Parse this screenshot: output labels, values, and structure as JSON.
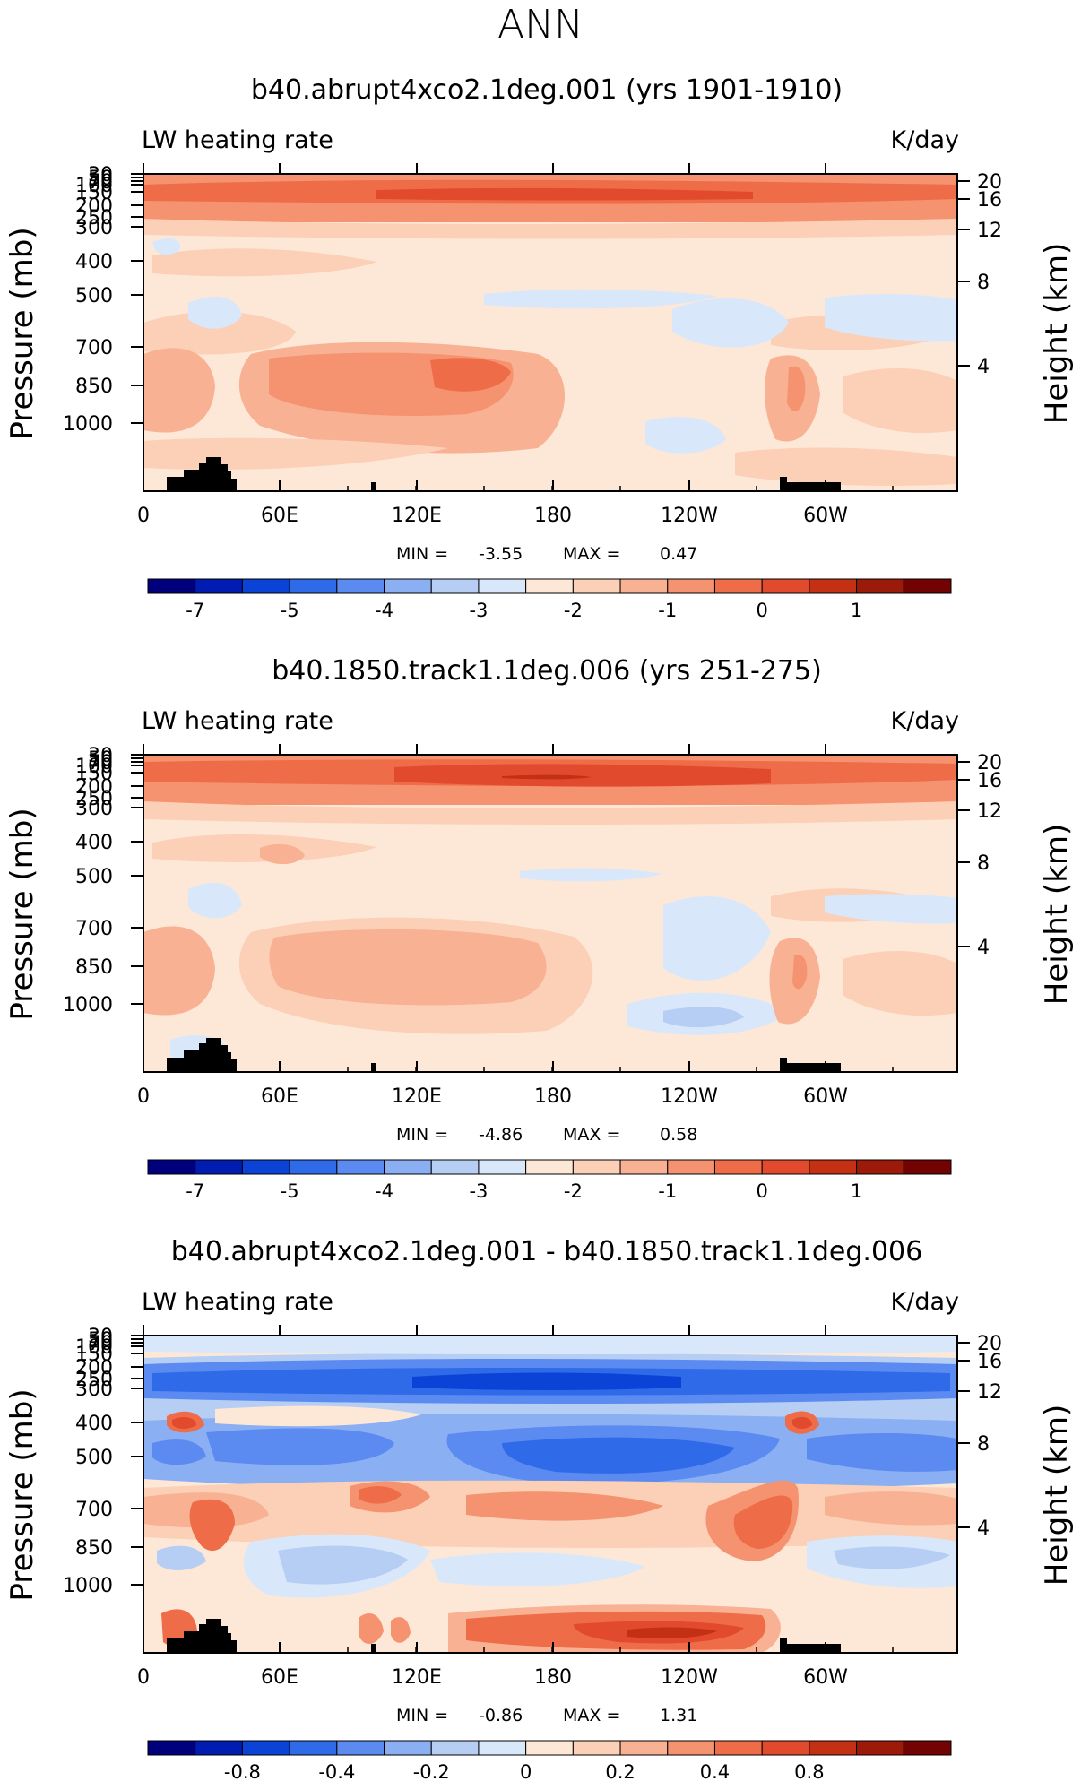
{
  "figure_title": "ANN",
  "colors": {
    "land": "#000000",
    "scale": [
      "#00007d",
      "#001cb1",
      "#0b43d6",
      "#2f6ae9",
      "#5b8af0",
      "#8aaff2",
      "#b6cef4",
      "#d9e7fb",
      "#fde8d8",
      "#fbd0b6",
      "#f8b193",
      "#f5926f",
      "#ef6c48",
      "#e24a2e",
      "#c43013",
      "#9c1a0a",
      "#730202"
    ]
  },
  "chart_data": [
    {
      "type": "heatmap",
      "title": "b40.abrupt4xco2.1deg.001 (yrs 1901-1910)",
      "left_label": "LW heating rate",
      "right_label": "K/day",
      "ylabel": "Pressure (mb)",
      "ylabel_right": "Height (km)",
      "xticks": [
        "0",
        "60E",
        "120E",
        "180",
        "120W",
        "60W"
      ],
      "yticks": [
        "30",
        "50",
        "70",
        "100",
        "150",
        "200",
        "250",
        "300",
        "400",
        "500",
        "700",
        "850",
        "1000"
      ],
      "height_ticks": [
        "20",
        "16",
        "12",
        "8",
        "4"
      ],
      "min_label": "MIN =",
      "min_value": "-3.55",
      "max_label": "MAX =",
      "max_value": "0.47",
      "colorbar_labels": [
        "-7",
        "-5",
        "-4",
        "-3",
        "-2",
        "-1",
        "0",
        "1"
      ]
    },
    {
      "type": "heatmap",
      "title": "b40.1850.track1.1deg.006 (yrs 251-275)",
      "left_label": "LW heating rate",
      "right_label": "K/day",
      "ylabel": "Pressure (mb)",
      "ylabel_right": "Height (km)",
      "xticks": [
        "0",
        "60E",
        "120E",
        "180",
        "120W",
        "60W"
      ],
      "yticks": [
        "30",
        "50",
        "70",
        "100",
        "150",
        "200",
        "250",
        "300",
        "400",
        "500",
        "700",
        "850",
        "1000"
      ],
      "height_ticks": [
        "20",
        "16",
        "12",
        "8",
        "4"
      ],
      "min_label": "MIN =",
      "min_value": "-4.86",
      "max_label": "MAX =",
      "max_value": "0.58",
      "colorbar_labels": [
        "-7",
        "-5",
        "-4",
        "-3",
        "-2",
        "-1",
        "0",
        "1"
      ]
    },
    {
      "type": "heatmap",
      "title": "b40.abrupt4xco2.1deg.001 - b40.1850.track1.1deg.006",
      "left_label": "LW heating rate",
      "right_label": "K/day",
      "ylabel": "Pressure (mb)",
      "ylabel_right": "Height (km)",
      "xticks": [
        "0",
        "60E",
        "120E",
        "180",
        "120W",
        "60W"
      ],
      "yticks": [
        "30",
        "50",
        "70",
        "100",
        "150",
        "200",
        "250",
        "300",
        "400",
        "500",
        "700",
        "850",
        "1000"
      ],
      "height_ticks": [
        "20",
        "16",
        "12",
        "8",
        "4"
      ],
      "min_label": "MIN =",
      "min_value": "-0.86",
      "max_label": "MAX =",
      "max_value": "1.31",
      "colorbar_labels": [
        "-0.8",
        "-0.4",
        "-0.2",
        "0",
        "0.2",
        "0.4",
        "0.8"
      ]
    }
  ]
}
